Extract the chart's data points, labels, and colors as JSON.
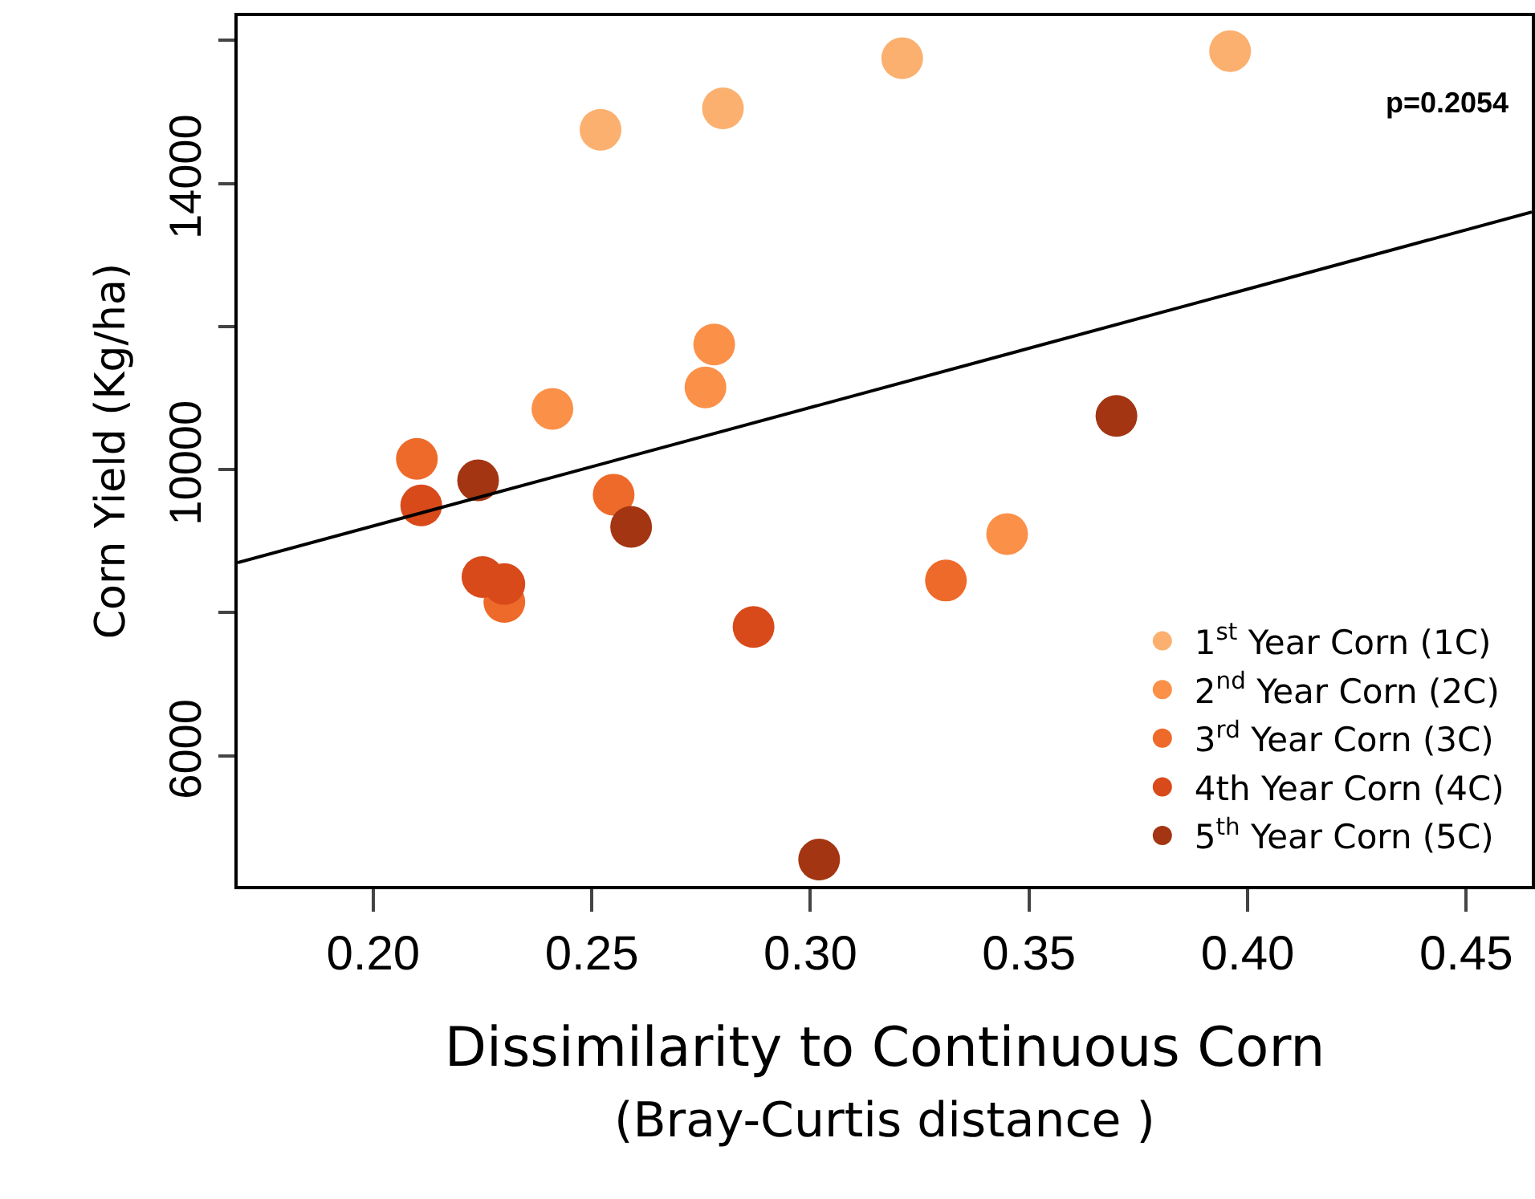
{
  "chart_data": {
    "type": "scatter",
    "xlabel": "Dissimilarity to Continuous Corn\n(Bray-Curtis distance )",
    "ylabel": "Corn Yield (Kg/ha)",
    "xlim": [
      0.169,
      0.465
    ],
    "ylim": [
      4180,
      16340
    ],
    "xticks": [
      {
        "value": 0.2,
        "label": "0.20"
      },
      {
        "value": 0.25,
        "label": "0.25"
      },
      {
        "value": 0.3,
        "label": "0.30"
      },
      {
        "value": 0.35,
        "label": "0.35"
      },
      {
        "value": 0.4,
        "label": "0.40"
      },
      {
        "value": 0.45,
        "label": "0.45"
      }
    ],
    "yticks": [
      6000,
      {
        "value": 8000,
        "label": null
      },
      10000,
      {
        "value": 12000,
        "label": null
      },
      14000,
      {
        "value": 16000,
        "label": null
      }
    ],
    "marker": "circle",
    "grid": false,
    "legend": "bottom right",
    "annotations": [
      "p=0.2054"
    ],
    "series": [
      {
        "name": "1$^{st}$ Year Corn (1C)",
        "color": "#fbb06f",
        "x": [
          0.252,
          0.28,
          0.321,
          0.396
        ],
        "values": [
          14750,
          15050,
          15750,
          15850
        ]
      },
      {
        "name": "2$^{nd}$ Year Corn (2C)",
        "color": "#fb9049",
        "x": [
          0.241,
          0.276,
          0.278,
          0.345
        ],
        "values": [
          10850,
          11150,
          11750,
          9100
        ]
      },
      {
        "name": "3$^{rd}$ Year Corn (3C)",
        "color": "#ee6a2a",
        "x": [
          0.21,
          0.255,
          0.23,
          0.331
        ],
        "values": [
          10150,
          9650,
          8150,
          8450
        ]
      },
      {
        "name": "4th Year Corn (4C)",
        "color": "#d84a1a",
        "x": [
          0.211,
          0.225,
          0.23,
          0.287
        ],
        "values": [
          9500,
          8500,
          8400,
          7800
        ]
      },
      {
        "name": "5$^{th}$ Year Corn (5C)",
        "color": "#a33512",
        "x": [
          0.224,
          0.259,
          0.302,
          0.37
        ],
        "values": [
          9850,
          9200,
          4550,
          10750
        ]
      },
      {
        "type": "line",
        "marker": "none",
        "color": "#000000",
        "x": [
          0.169,
          0.465
        ],
        "values": [
          8700,
          13600
        ]
      }
    ]
  }
}
